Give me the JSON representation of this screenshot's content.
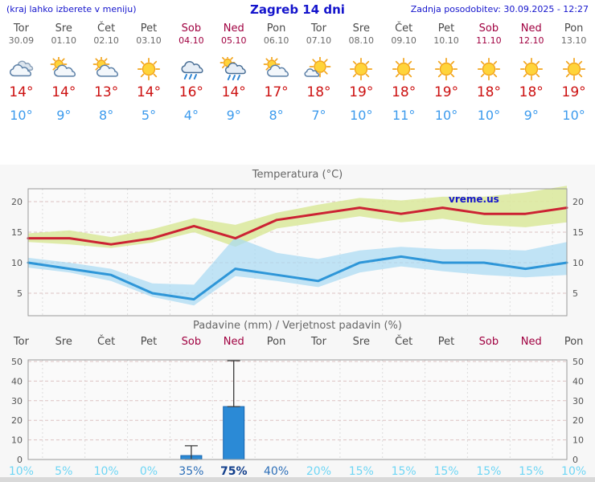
{
  "header": {
    "hint": "(kraj lahko izberete v meniju)",
    "title": "Zagreb 14 dni",
    "updated": "Zadnja posodobitev: 30.09.2025 - 12:27"
  },
  "days": [
    {
      "name": "Tor",
      "date": "30.09",
      "weekend": false,
      "icon": "cloudy",
      "high": 14,
      "low": 10
    },
    {
      "name": "Sre",
      "date": "01.10",
      "weekend": false,
      "icon": "partly",
      "high": 14,
      "low": 9
    },
    {
      "name": "Čet",
      "date": "02.10",
      "weekend": false,
      "icon": "partly",
      "high": 13,
      "low": 8
    },
    {
      "name": "Pet",
      "date": "03.10",
      "weekend": false,
      "icon": "sunny",
      "high": 14,
      "low": 5
    },
    {
      "name": "Sob",
      "date": "04.10",
      "weekend": true,
      "icon": "rain",
      "high": 16,
      "low": 4
    },
    {
      "name": "Ned",
      "date": "05.10",
      "weekend": true,
      "icon": "showers",
      "high": 14,
      "low": 9
    },
    {
      "name": "Pon",
      "date": "06.10",
      "weekend": false,
      "icon": "partly",
      "high": 17,
      "low": 8
    },
    {
      "name": "Tor",
      "date": "07.10",
      "weekend": false,
      "icon": "sun-cloud",
      "high": 18,
      "low": 7
    },
    {
      "name": "Sre",
      "date": "08.10",
      "weekend": false,
      "icon": "sunny",
      "high": 19,
      "low": 10
    },
    {
      "name": "Čet",
      "date": "09.10",
      "weekend": false,
      "icon": "sunny",
      "high": 18,
      "low": 11
    },
    {
      "name": "Pet",
      "date": "10.10",
      "weekend": false,
      "icon": "sunny",
      "high": 19,
      "low": 10
    },
    {
      "name": "Sob",
      "date": "11.10",
      "weekend": true,
      "icon": "sunny",
      "high": 18,
      "low": 10
    },
    {
      "name": "Ned",
      "date": "12.10",
      "weekend": true,
      "icon": "sunny",
      "high": 18,
      "low": 9
    },
    {
      "name": "Pon",
      "date": "13.10",
      "weekend": false,
      "icon": "sunny",
      "high": 19,
      "low": 10
    }
  ],
  "chart_data": [
    {
      "type": "line",
      "title": "Temperatura (°C)",
      "watermark": "vreme.us",
      "x_categories": [
        "Tor",
        "Sre",
        "Čet",
        "Pet",
        "Sob",
        "Ned",
        "Pon",
        "Tor",
        "Sre",
        "Čet",
        "Pet",
        "Sob",
        "Ned",
        "Pon"
      ],
      "ylabel": "°C",
      "yticks": [
        5,
        10,
        15,
        20
      ],
      "ylim": [
        1.5,
        22.5
      ],
      "max_values": [
        14,
        14,
        13,
        14,
        16,
        14,
        17,
        18,
        19,
        18,
        19,
        18,
        18,
        19
      ],
      "max_band_upper": [
        14.8,
        15.3,
        14.2,
        15.5,
        17.3,
        16.2,
        18.2,
        19.5,
        20.6,
        20.2,
        20.8,
        20.8,
        21.5,
        22.6
      ],
      "max_band_lower": [
        13.4,
        13,
        12.4,
        13.3,
        15,
        12.6,
        15.6,
        16.6,
        17.6,
        16.6,
        17.2,
        16.2,
        15.8,
        16.6
      ],
      "min_values": [
        10,
        9,
        8,
        5,
        4,
        9,
        8,
        7,
        10,
        11,
        10,
        10,
        9,
        10
      ],
      "min_band_upper": [
        10.8,
        10,
        9,
        6.6,
        6.4,
        14.2,
        11.6,
        10.6,
        12,
        12.6,
        12.2,
        12.2,
        12,
        13.4
      ],
      "min_band_lower": [
        9.2,
        8.4,
        7,
        4.4,
        3,
        7.8,
        7,
        6,
        8.4,
        9.4,
        8.6,
        8,
        7.6,
        8
      ]
    },
    {
      "type": "bar",
      "title": "Padavine (mm) / Verjetnost padavin (%)",
      "x_categories": [
        "Tor",
        "Sre",
        "Čet",
        "Pet",
        "Sob",
        "Ned",
        "Pon",
        "Tor",
        "Sre",
        "Čet",
        "Pet",
        "Sob",
        "Ned",
        "Pon"
      ],
      "yticks": [
        0,
        10,
        20,
        30,
        40,
        50
      ],
      "ylim": [
        0,
        52
      ],
      "values": [
        0,
        0,
        0,
        0,
        2,
        27,
        0,
        0,
        0,
        0,
        0,
        0,
        0,
        0
      ],
      "whiskers": [
        {
          "index": 4,
          "low": 0,
          "high": 7
        },
        {
          "index": 5,
          "low": 27,
          "high": 51
        }
      ],
      "probabilities": [
        10,
        5,
        10,
        0,
        35,
        75,
        40,
        20,
        15,
        15,
        15,
        15,
        15,
        10
      ]
    }
  ],
  "colors": {
    "header_blue": "#1414cc",
    "weekday": "#4a4a4a",
    "weekday_date": "#6a6a6a",
    "weekend": "#a00040",
    "high_temp": "#cc1111",
    "low_temp": "#3d9bed",
    "band_max": "#dce9a0",
    "band_min": "#a9d9f2",
    "line_max": "#cc2233",
    "line_min": "#2e96d8",
    "bar": "#2b8ad6",
    "bar_border": "#1565b0",
    "prob_low": "#6fd6f5",
    "prob_mid": "#2d6fb8",
    "prob_high": "#123f8c"
  }
}
